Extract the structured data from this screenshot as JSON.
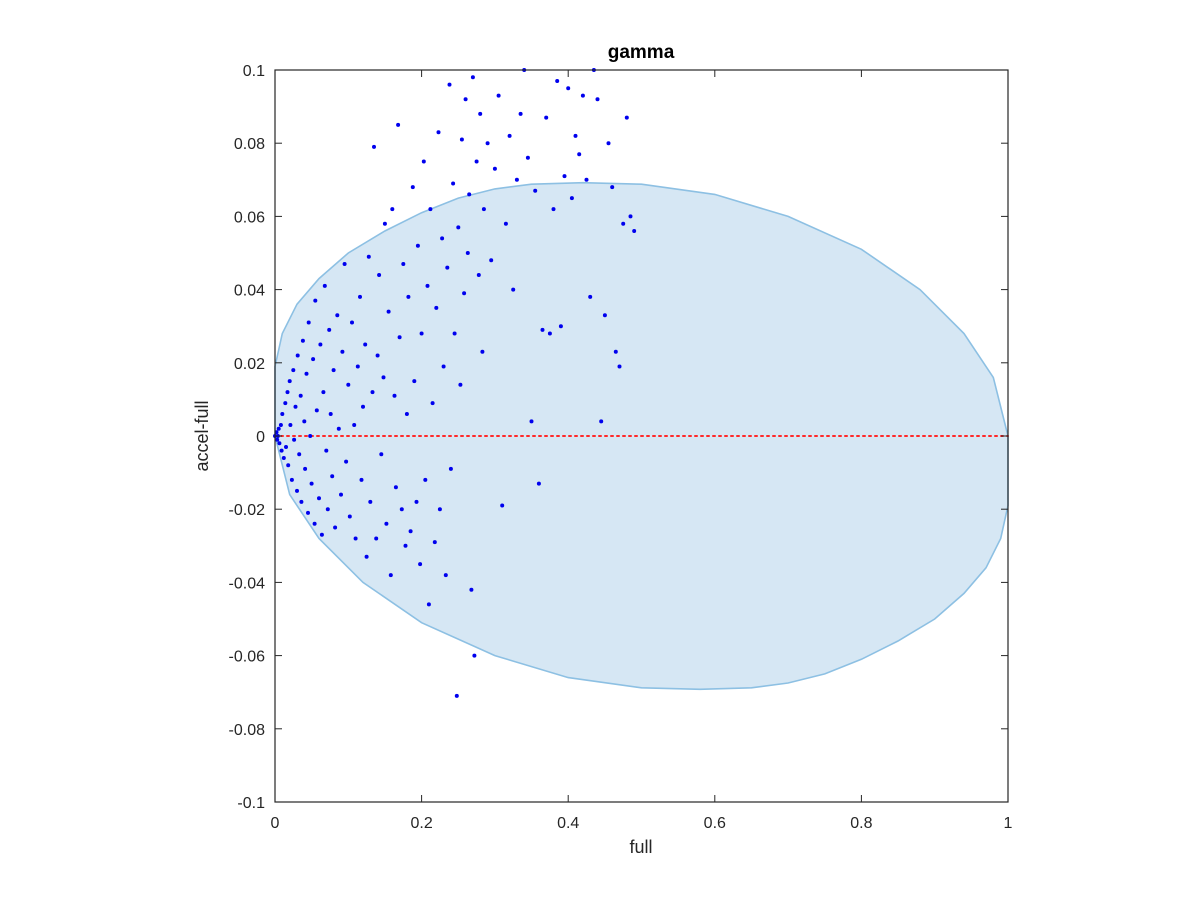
{
  "chart_data": {
    "type": "scatter",
    "title": "gamma",
    "xlabel": "full",
    "ylabel": "accel-full",
    "xlim": [
      0,
      1
    ],
    "ylim": [
      -0.1,
      0.1
    ],
    "xticks": [
      0,
      0.2,
      0.4,
      0.6,
      0.8,
      1
    ],
    "xtick_labels": [
      "0",
      "0.2",
      "0.4",
      "0.6",
      "0.8",
      "1"
    ],
    "yticks": [
      -0.1,
      -0.08,
      -0.06,
      -0.04,
      -0.02,
      0,
      0.02,
      0.04,
      0.06,
      0.08,
      0.1
    ],
    "ytick_labels": [
      "-0.1",
      "-0.08",
      "-0.06",
      "-0.04",
      "-0.02",
      "0",
      "0.02",
      "0.04",
      "0.06",
      "0.08",
      "0.1"
    ],
    "grid": false,
    "ellipse_region": {
      "color": "#d6e7f4",
      "edge_color": "#8dc0e3",
      "boundary": [
        [
          0.0,
          0.019
        ],
        [
          0.01,
          0.028
        ],
        [
          0.03,
          0.036
        ],
        [
          0.06,
          0.043
        ],
        [
          0.1,
          0.05
        ],
        [
          0.15,
          0.056
        ],
        [
          0.2,
          0.061
        ],
        [
          0.25,
          0.065
        ],
        [
          0.3,
          0.0675
        ],
        [
          0.35,
          0.0688
        ],
        [
          0.42,
          0.0692
        ],
        [
          0.5,
          0.0688
        ],
        [
          0.6,
          0.066
        ],
        [
          0.7,
          0.06
        ],
        [
          0.8,
          0.051
        ],
        [
          0.88,
          0.04
        ],
        [
          0.94,
          0.028
        ],
        [
          0.98,
          0.016
        ],
        [
          1.0,
          0.0
        ],
        [
          1.0,
          -0.019
        ],
        [
          0.99,
          -0.028
        ],
        [
          0.97,
          -0.036
        ],
        [
          0.94,
          -0.043
        ],
        [
          0.9,
          -0.05
        ],
        [
          0.85,
          -0.056
        ],
        [
          0.8,
          -0.061
        ],
        [
          0.75,
          -0.065
        ],
        [
          0.7,
          -0.0675
        ],
        [
          0.65,
          -0.0688
        ],
        [
          0.58,
          -0.0692
        ],
        [
          0.5,
          -0.0688
        ],
        [
          0.4,
          -0.066
        ],
        [
          0.3,
          -0.06
        ],
        [
          0.2,
          -0.051
        ],
        [
          0.12,
          -0.04
        ],
        [
          0.06,
          -0.028
        ],
        [
          0.02,
          -0.016
        ],
        [
          0.0,
          0.0
        ]
      ]
    },
    "reference_line": {
      "y": 0,
      "x_range": [
        0,
        1
      ],
      "color": "#ff2a2a",
      "style": "dotted"
    },
    "series": [
      {
        "color": "#0000ee",
        "points": [
          [
            0.0,
            0.0
          ],
          [
            0.002,
            0.001
          ],
          [
            0.003,
            -0.001
          ],
          [
            0.004,
            0.0
          ],
          [
            0.005,
            0.002
          ],
          [
            0.006,
            -0.002
          ],
          [
            0.008,
            0.003
          ],
          [
            0.009,
            -0.004
          ],
          [
            0.01,
            0.006
          ],
          [
            0.012,
            -0.006
          ],
          [
            0.014,
            0.009
          ],
          [
            0.015,
            -0.003
          ],
          [
            0.017,
            0.012
          ],
          [
            0.018,
            -0.008
          ],
          [
            0.02,
            0.015
          ],
          [
            0.021,
            0.003
          ],
          [
            0.023,
            -0.012
          ],
          [
            0.025,
            0.018
          ],
          [
            0.026,
            -0.001
          ],
          [
            0.028,
            0.008
          ],
          [
            0.03,
            -0.015
          ],
          [
            0.031,
            0.022
          ],
          [
            0.033,
            -0.005
          ],
          [
            0.035,
            0.011
          ],
          [
            0.036,
            -0.018
          ],
          [
            0.038,
            0.026
          ],
          [
            0.04,
            0.004
          ],
          [
            0.041,
            -0.009
          ],
          [
            0.043,
            0.017
          ],
          [
            0.045,
            -0.021
          ],
          [
            0.046,
            0.031
          ],
          [
            0.048,
            0.0
          ],
          [
            0.05,
            -0.013
          ],
          [
            0.052,
            0.021
          ],
          [
            0.054,
            -0.024
          ],
          [
            0.055,
            0.037
          ],
          [
            0.057,
            0.007
          ],
          [
            0.06,
            -0.017
          ],
          [
            0.062,
            0.025
          ],
          [
            0.064,
            -0.027
          ],
          [
            0.066,
            0.012
          ],
          [
            0.068,
            0.041
          ],
          [
            0.07,
            -0.004
          ],
          [
            0.072,
            -0.02
          ],
          [
            0.074,
            0.029
          ],
          [
            0.076,
            0.006
          ],
          [
            0.078,
            -0.011
          ],
          [
            0.08,
            0.018
          ],
          [
            0.082,
            -0.025
          ],
          [
            0.085,
            0.033
          ],
          [
            0.087,
            0.002
          ],
          [
            0.09,
            -0.016
          ],
          [
            0.092,
            0.023
          ],
          [
            0.095,
            0.047
          ],
          [
            0.097,
            -0.007
          ],
          [
            0.1,
            0.014
          ],
          [
            0.102,
            -0.022
          ],
          [
            0.105,
            0.031
          ],
          [
            0.108,
            0.003
          ],
          [
            0.11,
            -0.028
          ],
          [
            0.113,
            0.019
          ],
          [
            0.116,
            0.038
          ],
          [
            0.118,
            -0.012
          ],
          [
            0.12,
            0.008
          ],
          [
            0.123,
            0.025
          ],
          [
            0.125,
            -0.033
          ],
          [
            0.128,
            0.049
          ],
          [
            0.13,
            -0.018
          ],
          [
            0.133,
            0.012
          ],
          [
            0.135,
            0.079
          ],
          [
            0.138,
            -0.028
          ],
          [
            0.14,
            0.022
          ],
          [
            0.142,
            0.044
          ],
          [
            0.145,
            -0.005
          ],
          [
            0.148,
            0.016
          ],
          [
            0.15,
            0.058
          ],
          [
            0.152,
            -0.024
          ],
          [
            0.155,
            0.034
          ],
          [
            0.158,
            -0.038
          ],
          [
            0.16,
            0.062
          ],
          [
            0.163,
            0.011
          ],
          [
            0.165,
            -0.014
          ],
          [
            0.168,
            0.085
          ],
          [
            0.17,
            0.027
          ],
          [
            0.173,
            -0.02
          ],
          [
            0.175,
            0.047
          ],
          [
            0.178,
            -0.03
          ],
          [
            0.18,
            0.006
          ],
          [
            0.182,
            0.038
          ],
          [
            0.185,
            -0.026
          ],
          [
            0.188,
            0.068
          ],
          [
            0.19,
            0.015
          ],
          [
            0.193,
            -0.018
          ],
          [
            0.195,
            0.052
          ],
          [
            0.198,
            -0.035
          ],
          [
            0.2,
            0.028
          ],
          [
            0.203,
            0.075
          ],
          [
            0.205,
            -0.012
          ],
          [
            0.208,
            0.041
          ],
          [
            0.21,
            -0.046
          ],
          [
            0.212,
            0.062
          ],
          [
            0.215,
            0.009
          ],
          [
            0.218,
            -0.029
          ],
          [
            0.22,
            0.035
          ],
          [
            0.223,
            0.083
          ],
          [
            0.225,
            -0.02
          ],
          [
            0.228,
            0.054
          ],
          [
            0.23,
            0.019
          ],
          [
            0.233,
            -0.038
          ],
          [
            0.235,
            0.046
          ],
          [
            0.238,
            0.096
          ],
          [
            0.24,
            -0.009
          ],
          [
            0.243,
            0.069
          ],
          [
            0.245,
            0.028
          ],
          [
            0.248,
            -0.071
          ],
          [
            0.25,
            0.057
          ],
          [
            0.253,
            0.014
          ],
          [
            0.255,
            0.081
          ],
          [
            0.258,
            0.039
          ],
          [
            0.26,
            0.092
          ],
          [
            0.263,
            0.05
          ],
          [
            0.265,
            0.066
          ],
          [
            0.268,
            -0.042
          ],
          [
            0.27,
            0.098
          ],
          [
            0.272,
            -0.06
          ],
          [
            0.275,
            0.075
          ],
          [
            0.278,
            0.044
          ],
          [
            0.28,
            0.088
          ],
          [
            0.283,
            0.023
          ],
          [
            0.285,
            0.062
          ],
          [
            0.29,
            0.08
          ],
          [
            0.295,
            0.048
          ],
          [
            0.3,
            0.073
          ],
          [
            0.305,
            0.093
          ],
          [
            0.31,
            -0.019
          ],
          [
            0.315,
            0.058
          ],
          [
            0.32,
            0.082
          ],
          [
            0.325,
            0.04
          ],
          [
            0.33,
            0.07
          ],
          [
            0.335,
            0.088
          ],
          [
            0.34,
            0.1
          ],
          [
            0.345,
            0.076
          ],
          [
            0.35,
            0.004
          ],
          [
            0.355,
            0.067
          ],
          [
            0.36,
            -0.013
          ],
          [
            0.365,
            0.029
          ],
          [
            0.37,
            0.087
          ],
          [
            0.375,
            0.028
          ],
          [
            0.38,
            0.062
          ],
          [
            0.385,
            0.097
          ],
          [
            0.39,
            0.03
          ],
          [
            0.395,
            0.071
          ],
          [
            0.4,
            0.095
          ],
          [
            0.405,
            0.065
          ],
          [
            0.41,
            0.082
          ],
          [
            0.415,
            0.077
          ],
          [
            0.42,
            0.093
          ],
          [
            0.425,
            0.07
          ],
          [
            0.43,
            0.038
          ],
          [
            0.435,
            0.1
          ],
          [
            0.44,
            0.092
          ],
          [
            0.445,
            0.004
          ],
          [
            0.45,
            0.033
          ],
          [
            0.455,
            0.08
          ],
          [
            0.46,
            0.068
          ],
          [
            0.465,
            0.023
          ],
          [
            0.47,
            0.019
          ],
          [
            0.475,
            0.058
          ],
          [
            0.48,
            0.087
          ],
          [
            0.485,
            0.06
          ],
          [
            0.49,
            0.056
          ]
        ]
      }
    ]
  }
}
